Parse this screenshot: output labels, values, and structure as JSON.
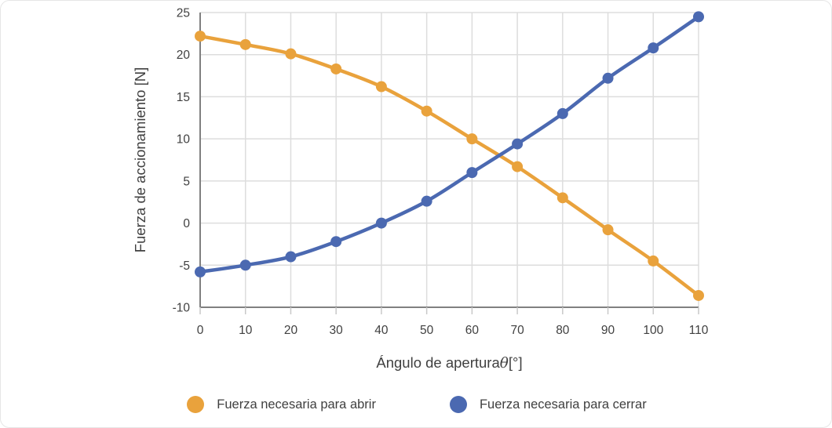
{
  "chart_data": {
    "type": "line",
    "x": [
      0,
      10,
      20,
      30,
      40,
      50,
      60,
      70,
      80,
      90,
      100,
      110
    ],
    "series": [
      {
        "name": "Fuerza necesaria para abrir",
        "color": "#E9A23C",
        "values": [
          22.2,
          21.2,
          20.1,
          18.3,
          16.2,
          13.3,
          10.0,
          6.7,
          3.0,
          -0.8,
          -4.5,
          -8.6
        ]
      },
      {
        "name": "Fuerza necesaria para cerrar",
        "color": "#4B69B1",
        "values": [
          -5.8,
          -5.0,
          -4.0,
          -2.2,
          0.0,
          2.6,
          6.0,
          9.4,
          13.0,
          17.2,
          20.8,
          24.5
        ]
      }
    ],
    "title": "",
    "xlabel": "Ángulo de aperturaθ[°]",
    "xlabel_parts": {
      "prefix": "Ángulo de apertura",
      "symbol": "θ",
      "suffix": "[°]"
    },
    "ylabel": "Fuerza de accionamiento [N]",
    "xlim": [
      0,
      110
    ],
    "ylim": [
      -10,
      25
    ],
    "xticks": [
      0,
      10,
      20,
      30,
      40,
      50,
      60,
      70,
      80,
      90,
      100,
      110
    ],
    "yticks": [
      -10,
      -5,
      0,
      5,
      10,
      15,
      20,
      25
    ],
    "grid": true,
    "legend_position": "bottom",
    "styles": {
      "grid_color": "#DDDDDD",
      "axis_color": "#808080",
      "tick_color": "#C9C9C9",
      "text_color": "#404040",
      "background": "#FFFFFF",
      "marker_radius": 7,
      "line_width": 4.5
    }
  }
}
